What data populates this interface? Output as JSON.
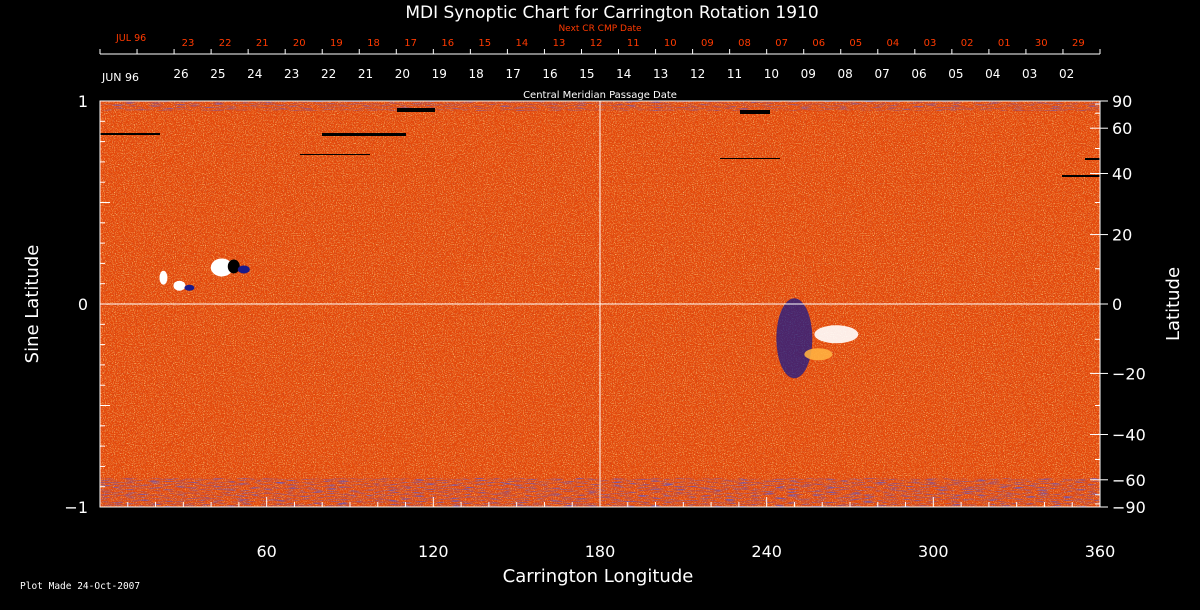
{
  "chart_data": {
    "type": "heatmap",
    "title": "MDI Synoptic Chart for Carrington Rotation 1910",
    "xlabel": "Carrington Longitude",
    "ylabel_left": "Sine Latitude",
    "ylabel_right": "Latitude",
    "xlim": [
      0,
      360
    ],
    "ylim": [
      -1,
      1
    ],
    "x_ticks": [
      60,
      120,
      180,
      240,
      300,
      360
    ],
    "y_left_ticks": [
      {
        "value": 1,
        "label": "1"
      },
      {
        "value": 0,
        "label": "0"
      },
      {
        "value": -1,
        "label": "−1"
      }
    ],
    "y_right_ticks": [
      90,
      60,
      40,
      20,
      0,
      -20,
      -40,
      -60,
      -90
    ],
    "y_right_tick_labels": [
      "90",
      "60",
      "40",
      "20",
      "0",
      "−20",
      "−40",
      "−60",
      "−90"
    ],
    "next_cr_label": "Next CR CMP Date",
    "next_cr_month": "JUL 96",
    "next_cr_dates": [
      "23",
      "22",
      "21",
      "20",
      "19",
      "18",
      "17",
      "16",
      "15",
      "14",
      "13",
      "12",
      "11",
      "10",
      "09",
      "08",
      "07",
      "06",
      "05",
      "04",
      "03",
      "02",
      "01",
      "30",
      "29"
    ],
    "cmp_month": "JUN 96",
    "cmp_label": "Central Meridian Passage Date",
    "cmp_dates": [
      "26",
      "25",
      "24",
      "23",
      "22",
      "21",
      "20",
      "19",
      "18",
      "17",
      "16",
      "15",
      "14",
      "13",
      "12",
      "11",
      "10",
      "09",
      "08",
      "07",
      "06",
      "05",
      "04",
      "03",
      "02"
    ],
    "features": [
      {
        "name": "active-region-1",
        "lon": 46,
        "sinlat": 0.18
      },
      {
        "name": "active-region-2",
        "lon": 25,
        "sinlat": 0.1
      },
      {
        "name": "active-region-3",
        "lon": 255,
        "sinlat": -0.1
      }
    ],
    "footer": "Plot Made 24-Oct-2007"
  },
  "colors": {
    "background": "#000000",
    "map_base": "#e44a0c",
    "map_light": "#ffb040",
    "map_dark": "#b0180a",
    "negative": "#1a1a8a",
    "positive": "#ffffff",
    "cr_red": "#ff3a00",
    "text": "#ffffff"
  }
}
